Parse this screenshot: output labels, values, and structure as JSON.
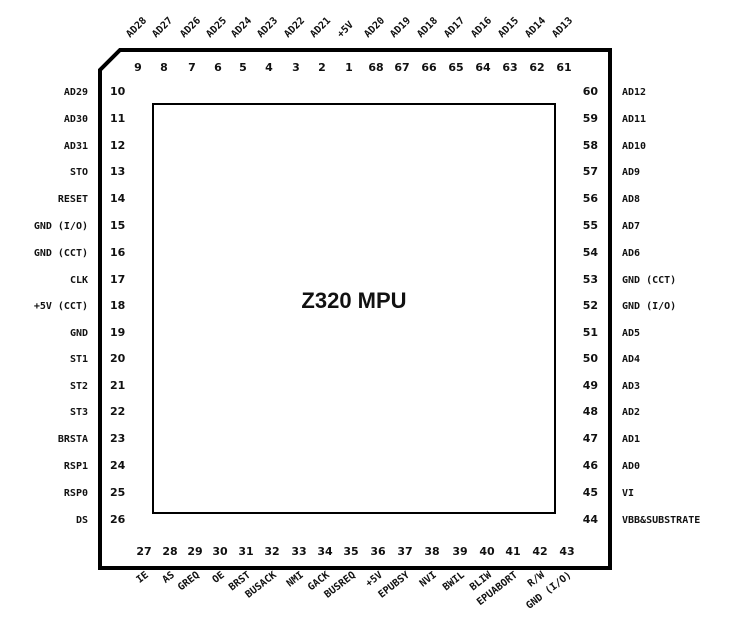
{
  "chip": {
    "name": "Z320 MPU"
  },
  "pins": {
    "top": [
      {
        "num": "9",
        "name": "AD28"
      },
      {
        "num": "8",
        "name": "AD27"
      },
      {
        "num": "7",
        "name": "AD26"
      },
      {
        "num": "6",
        "name": "AD25"
      },
      {
        "num": "5",
        "name": "AD24"
      },
      {
        "num": "4",
        "name": "AD23"
      },
      {
        "num": "3",
        "name": "AD22"
      },
      {
        "num": "2",
        "name": "AD21"
      },
      {
        "num": "1",
        "name": "+5V"
      },
      {
        "num": "68",
        "name": "AD20"
      },
      {
        "num": "67",
        "name": "AD19"
      },
      {
        "num": "66",
        "name": "AD18"
      },
      {
        "num": "65",
        "name": "AD17"
      },
      {
        "num": "64",
        "name": "AD16"
      },
      {
        "num": "63",
        "name": "AD15"
      },
      {
        "num": "62",
        "name": "AD14"
      },
      {
        "num": "61",
        "name": "AD13"
      }
    ],
    "left": [
      {
        "num": "10",
        "name": "AD29"
      },
      {
        "num": "11",
        "name": "AD30"
      },
      {
        "num": "12",
        "name": "AD31"
      },
      {
        "num": "13",
        "name": "STO"
      },
      {
        "num": "14",
        "name": "RESET"
      },
      {
        "num": "15",
        "name": "GND (I/O)"
      },
      {
        "num": "16",
        "name": "GND (CCT)"
      },
      {
        "num": "17",
        "name": "CLK"
      },
      {
        "num": "18",
        "name": "+5V (CCT)"
      },
      {
        "num": "19",
        "name": "GND"
      },
      {
        "num": "20",
        "name": "ST1"
      },
      {
        "num": "21",
        "name": "ST2"
      },
      {
        "num": "22",
        "name": "ST3"
      },
      {
        "num": "23",
        "name": "BRSTA"
      },
      {
        "num": "24",
        "name": "RSP1"
      },
      {
        "num": "25",
        "name": "RSP0"
      },
      {
        "num": "26",
        "name": "DS"
      }
    ],
    "right": [
      {
        "num": "60",
        "name": "AD12"
      },
      {
        "num": "59",
        "name": "AD11"
      },
      {
        "num": "58",
        "name": "AD10"
      },
      {
        "num": "57",
        "name": "AD9"
      },
      {
        "num": "56",
        "name": "AD8"
      },
      {
        "num": "55",
        "name": "AD7"
      },
      {
        "num": "54",
        "name": "AD6"
      },
      {
        "num": "53",
        "name": "GND (CCT)"
      },
      {
        "num": "52",
        "name": "GND (I/O)"
      },
      {
        "num": "51",
        "name": "AD5"
      },
      {
        "num": "50",
        "name": "AD4"
      },
      {
        "num": "49",
        "name": "AD3"
      },
      {
        "num": "48",
        "name": "AD2"
      },
      {
        "num": "47",
        "name": "AD1"
      },
      {
        "num": "46",
        "name": "AD0"
      },
      {
        "num": "45",
        "name": "VI"
      },
      {
        "num": "44",
        "name": "VBB&SUBSTRATE"
      }
    ],
    "bottom": [
      {
        "num": "27",
        "name": "IE"
      },
      {
        "num": "28",
        "name": "AS"
      },
      {
        "num": "29",
        "name": "GREQ"
      },
      {
        "num": "30",
        "name": "OE"
      },
      {
        "num": "31",
        "name": "BRST"
      },
      {
        "num": "32",
        "name": "BUSACK"
      },
      {
        "num": "33",
        "name": "NMI"
      },
      {
        "num": "34",
        "name": "GACK"
      },
      {
        "num": "35",
        "name": "BUSREQ"
      },
      {
        "num": "36",
        "name": "+5V"
      },
      {
        "num": "37",
        "name": "EPUBSY"
      },
      {
        "num": "38",
        "name": "NVI"
      },
      {
        "num": "39",
        "name": "BWIL"
      },
      {
        "num": "40",
        "name": "BLIW"
      },
      {
        "num": "41",
        "name": "EPUABORT"
      },
      {
        "num": "42",
        "name": "R/W"
      },
      {
        "num": "43",
        "name": "GND (I/O)"
      }
    ]
  }
}
